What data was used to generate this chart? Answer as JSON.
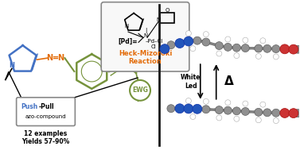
{
  "bg_color": "#ffffff",
  "left_panel": {
    "pyrrole_color": "#4472c4",
    "azo_color": "#e36c09",
    "benzene_color": "#76933c",
    "vinyl_color": "#76933c",
    "ewg_color": "#76933c",
    "push_color": "#4472c4",
    "pd_text_color": "#e36c09",
    "label_12ex": "12 examples",
    "label_yields": "Yields 57-90%",
    "push_pull_text1": "Push",
    "push_pull_text2": "-Pull",
    "azo_compound_label": "azo-compound",
    "heck_label": "Heck-Mizoroki\nReaction",
    "ewg_label": "EWG"
  },
  "right_panel": {
    "white_led_label": "White\nLed",
    "delta_label": "Δ"
  },
  "divider_color": "#1a1a1a"
}
